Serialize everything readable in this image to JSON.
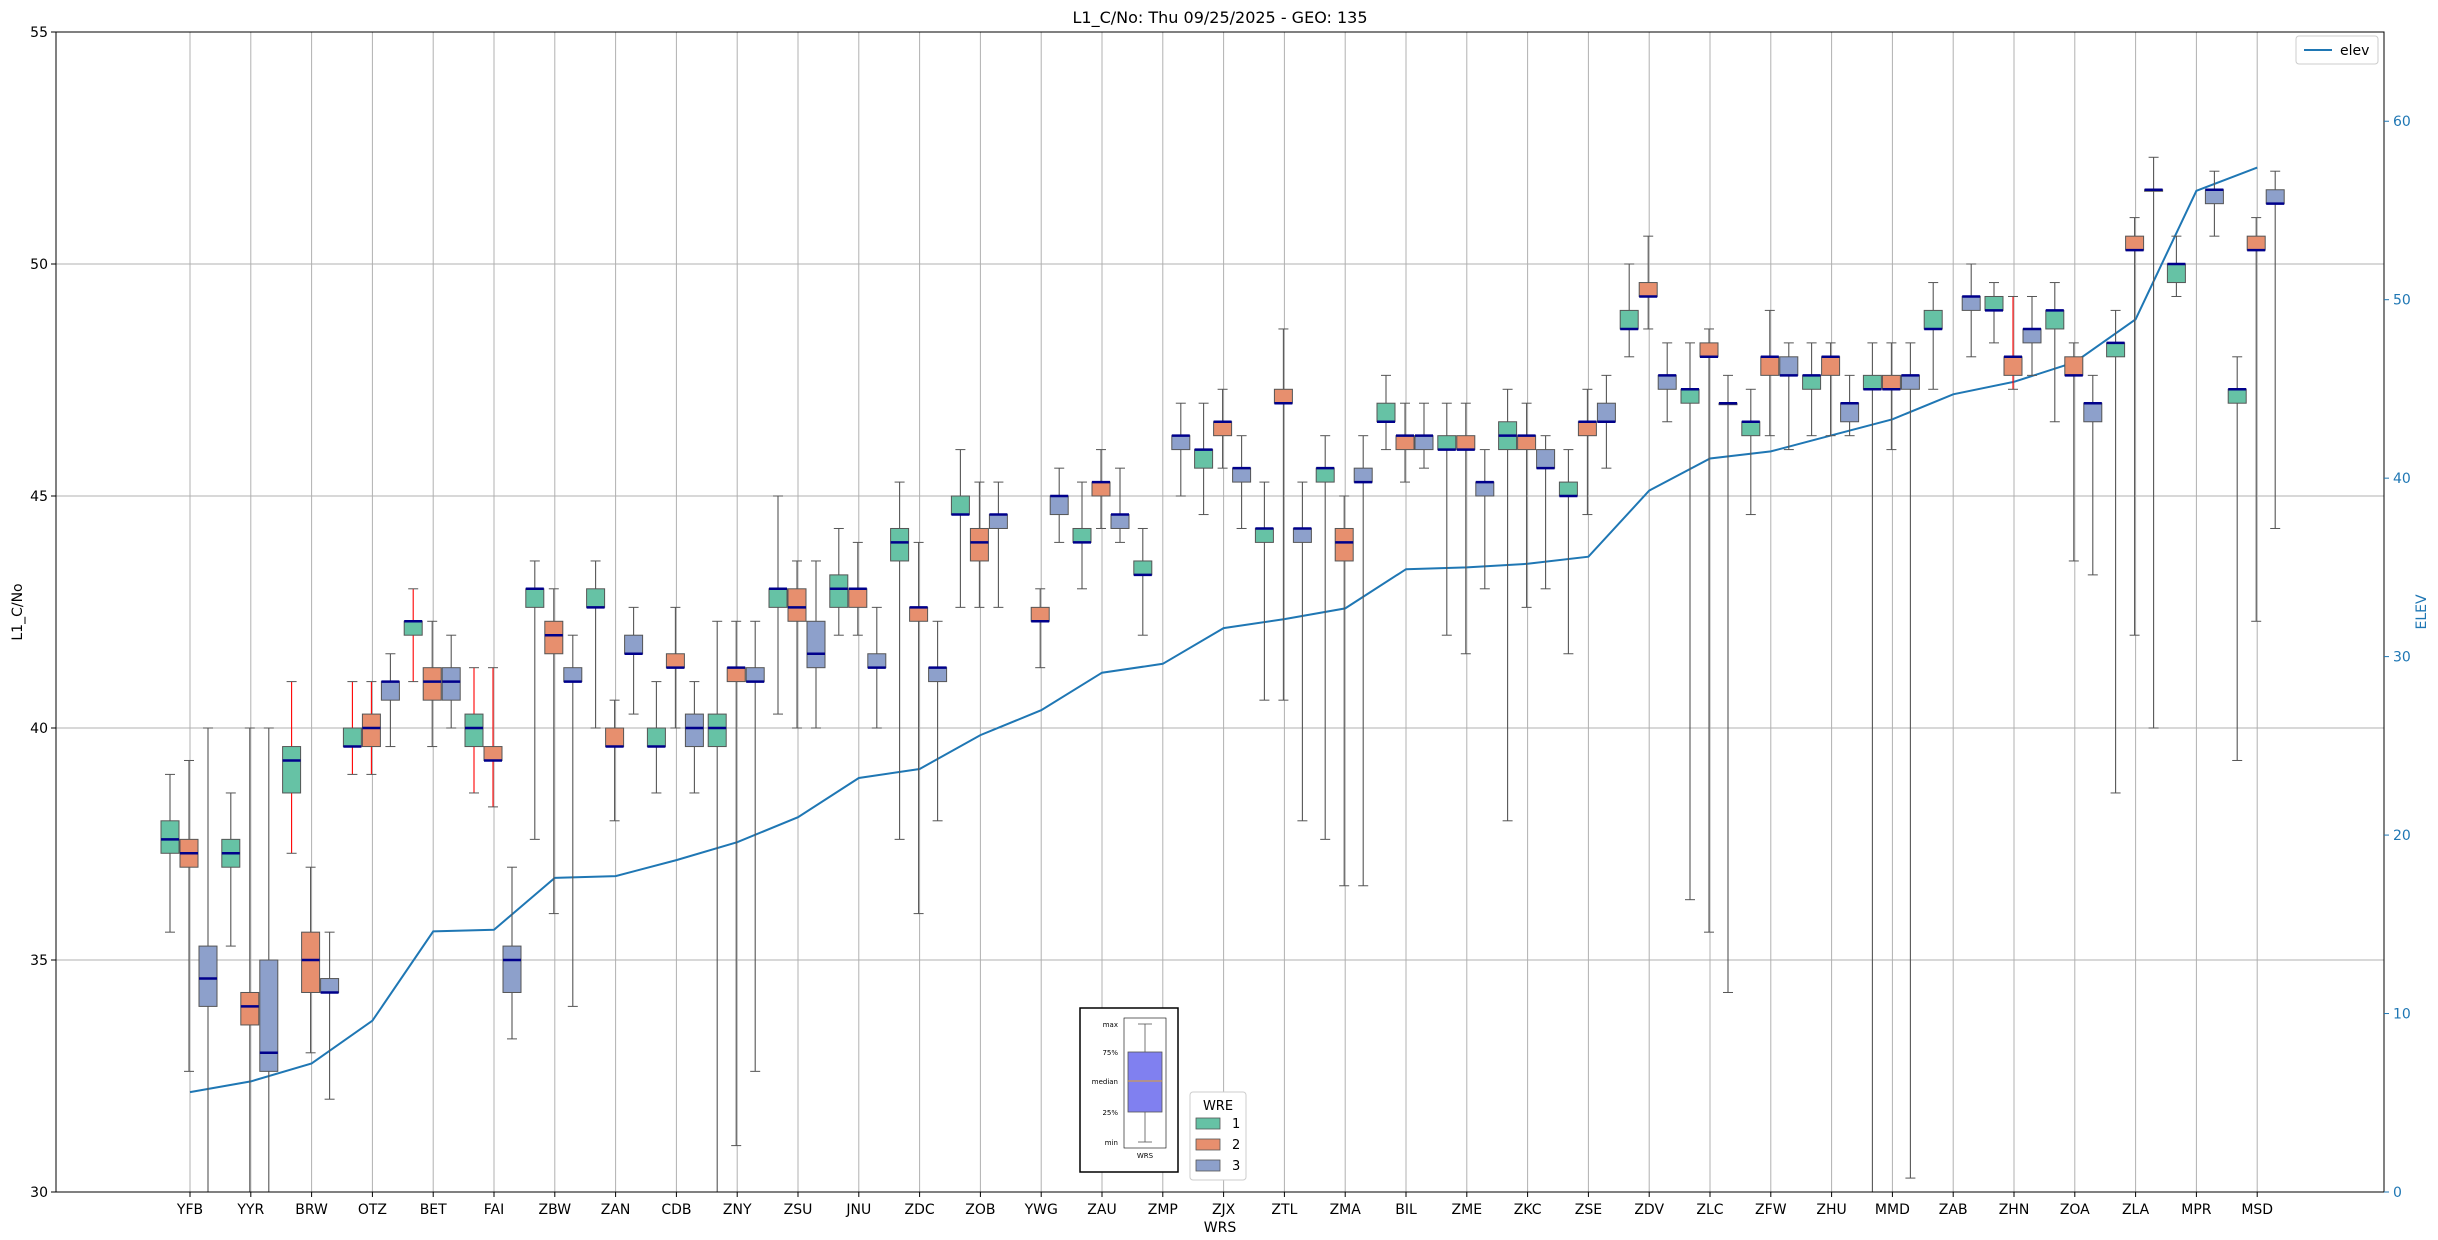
{
  "chart_data": {
    "type": "boxplot",
    "title": "L1_C/No: Thu 09/25/2025 - GEO: 135",
    "xlabel": "WRS",
    "ylabel": "L1_C/No",
    "y2label": "ELEV",
    "ylim": [
      30,
      55
    ],
    "y2lim": [
      0,
      65
    ],
    "yticks": [
      "30",
      "35",
      "40",
      "45",
      "50",
      "55"
    ],
    "y2ticks": [
      "0",
      "10",
      "20",
      "30",
      "40",
      "50",
      "60"
    ],
    "grid": true,
    "categories": [
      "YFB",
      "YYR",
      "BRW",
      "OTZ",
      "BET",
      "FAI",
      "ZBW",
      "ZAN",
      "CDB",
      "ZNY",
      "ZSU",
      "JNU",
      "ZDC",
      "ZOB",
      "YWG",
      "ZAU",
      "ZMP",
      "ZJX",
      "ZTL",
      "ZMA",
      "BIL",
      "ZME",
      "ZKC",
      "ZSE",
      "ZDV",
      "ZLC",
      "ZFW",
      "ZHU",
      "MMD",
      "ZAB",
      "ZHN",
      "ZOA",
      "ZLA",
      "MPR",
      "MSD"
    ],
    "series": [
      {
        "name": "1",
        "color": "#66c2a5",
        "boxes": [
          [
            0,
            35.6,
            37.3,
            37.6,
            38.0,
            39.0,
            "#555555"
          ],
          [
            1,
            35.3,
            37.0,
            37.3,
            37.6,
            38.6,
            "#555555"
          ],
          [
            2,
            37.3,
            38.6,
            39.3,
            39.6,
            41.0,
            "#ff0000"
          ],
          [
            3,
            39.0,
            39.6,
            39.6,
            40.0,
            41.0,
            "#ff0000"
          ],
          [
            4,
            41.0,
            42.0,
            42.3,
            42.3,
            43.0,
            "#ff0000"
          ],
          [
            5,
            38.6,
            39.6,
            40.0,
            40.3,
            41.3,
            "#ff0000"
          ],
          [
            6,
            37.6,
            42.6,
            43.0,
            43.0,
            43.6,
            "#555555"
          ],
          [
            7,
            40.0,
            42.6,
            42.6,
            43.0,
            43.6,
            "#555555"
          ],
          [
            8,
            38.6,
            39.6,
            39.6,
            40.0,
            41.0,
            "#555555"
          ],
          [
            9,
            30.0,
            39.6,
            40.0,
            40.3,
            42.3,
            "#555555"
          ],
          [
            10,
            40.3,
            42.6,
            43.0,
            43.0,
            45.0,
            "#555555"
          ],
          [
            11,
            42.0,
            42.6,
            43.0,
            43.3,
            44.3,
            "#555555"
          ],
          [
            12,
            37.6,
            43.6,
            44.0,
            44.3,
            45.3,
            "#555555"
          ],
          [
            13,
            42.6,
            44.6,
            44.6,
            45.0,
            46.0,
            "#555555"
          ],
          [
            15,
            43.0,
            44.0,
            44.0,
            44.3,
            45.3,
            "#555555"
          ],
          [
            16,
            42.0,
            43.3,
            43.3,
            43.6,
            44.3,
            "#555555"
          ],
          [
            17,
            44.6,
            45.6,
            46.0,
            46.0,
            47.0,
            "#555555"
          ],
          [
            18,
            40.6,
            44.0,
            44.3,
            44.3,
            45.3,
            "#555555"
          ],
          [
            19,
            37.6,
            45.3,
            45.6,
            45.6,
            46.3,
            "#555555"
          ],
          [
            20,
            46.0,
            46.6,
            46.6,
            47.0,
            47.6,
            "#555555"
          ],
          [
            21,
            42.0,
            46.0,
            46.0,
            46.3,
            47.0,
            "#555555"
          ],
          [
            22,
            38.0,
            46.0,
            46.3,
            46.6,
            47.3,
            "#555555"
          ],
          [
            23,
            41.6,
            45.0,
            45.0,
            45.3,
            46.0,
            "#555555"
          ],
          [
            24,
            48.0,
            48.6,
            48.6,
            49.0,
            50.0,
            "#555555"
          ],
          [
            25,
            36.3,
            47.0,
            47.3,
            47.3,
            48.3,
            "#555555"
          ],
          [
            26,
            44.6,
            46.3,
            46.6,
            46.6,
            47.3,
            "#555555"
          ],
          [
            27,
            46.3,
            47.3,
            47.6,
            47.6,
            48.3,
            "#555555"
          ],
          [
            28,
            30.0,
            47.3,
            47.3,
            47.6,
            48.3,
            "#555555"
          ],
          [
            29,
            47.3,
            48.6,
            48.6,
            49.0,
            49.6,
            "#555555"
          ],
          [
            30,
            48.3,
            49.0,
            49.0,
            49.3,
            49.6,
            "#555555"
          ],
          [
            31,
            46.6,
            48.6,
            49.0,
            49.0,
            49.6,
            "#555555"
          ],
          [
            32,
            38.6,
            48.0,
            48.3,
            48.3,
            49.0,
            "#555555"
          ],
          [
            33,
            49.3,
            49.6,
            50.0,
            50.0,
            50.6,
            "#555555"
          ],
          [
            34,
            39.3,
            47.0,
            47.3,
            47.3,
            48.0,
            "#555555"
          ]
        ]
      },
      {
        "name": "2",
        "color": "#e78f6e",
        "boxes": [
          [
            0,
            32.6,
            37.0,
            37.3,
            37.6,
            39.3,
            "#555555"
          ],
          [
            1,
            30.0,
            33.6,
            34.0,
            34.3,
            40.0,
            "#555555"
          ],
          [
            2,
            33.0,
            34.3,
            35.0,
            35.6,
            37.0,
            "#555555"
          ],
          [
            3,
            39.0,
            39.6,
            40.0,
            40.3,
            41.0,
            "#ff0000"
          ],
          [
            4,
            39.6,
            40.6,
            41.0,
            41.3,
            42.3,
            "#555555"
          ],
          [
            5,
            38.3,
            39.3,
            39.3,
            39.6,
            41.3,
            "#ff0000"
          ],
          [
            6,
            36.0,
            41.6,
            42.0,
            42.3,
            43.0,
            "#555555"
          ],
          [
            7,
            38.0,
            39.6,
            39.6,
            40.0,
            40.6,
            "#555555"
          ],
          [
            8,
            40.0,
            41.3,
            41.3,
            41.6,
            42.6,
            "#555555"
          ],
          [
            9,
            31.0,
            41.0,
            41.3,
            41.3,
            42.3,
            "#555555"
          ],
          [
            10,
            40.0,
            42.3,
            42.6,
            43.0,
            43.6,
            "#555555"
          ],
          [
            11,
            42.0,
            42.6,
            43.0,
            43.0,
            44.0,
            "#555555"
          ],
          [
            12,
            36.0,
            42.3,
            42.6,
            42.6,
            44.0,
            "#555555"
          ],
          [
            13,
            42.6,
            43.6,
            44.0,
            44.3,
            45.3,
            "#555555"
          ],
          [
            14,
            41.3,
            42.3,
            42.3,
            42.6,
            43.0,
            "#555555"
          ],
          [
            15,
            44.3,
            45.0,
            45.3,
            45.3,
            46.0,
            "#555555"
          ],
          [
            17,
            45.6,
            46.3,
            46.6,
            46.6,
            47.3,
            "#555555"
          ],
          [
            18,
            40.6,
            47.0,
            47.0,
            47.3,
            48.6,
            "#555555"
          ],
          [
            19,
            36.6,
            43.6,
            44.0,
            44.3,
            45.0,
            "#555555"
          ],
          [
            20,
            45.3,
            46.0,
            46.3,
            46.3,
            47.0,
            "#555555"
          ],
          [
            21,
            41.6,
            46.0,
            46.0,
            46.3,
            47.0,
            "#555555"
          ],
          [
            22,
            42.6,
            46.0,
            46.3,
            46.3,
            47.0,
            "#555555"
          ],
          [
            23,
            44.6,
            46.3,
            46.6,
            46.6,
            47.3,
            "#555555"
          ],
          [
            24,
            48.6,
            49.3,
            49.3,
            49.6,
            50.6,
            "#555555"
          ],
          [
            25,
            35.6,
            48.0,
            48.0,
            48.3,
            48.6,
            "#555555"
          ],
          [
            26,
            46.3,
            47.6,
            48.0,
            48.0,
            49.0,
            "#555555"
          ],
          [
            27,
            46.3,
            47.6,
            48.0,
            48.0,
            48.3,
            "#555555"
          ],
          [
            28,
            46.0,
            47.3,
            47.3,
            47.6,
            48.3,
            "#555555"
          ],
          [
            30,
            47.3,
            47.6,
            48.0,
            48.0,
            49.3,
            "#ff0000"
          ],
          [
            31,
            43.6,
            47.6,
            47.6,
            48.0,
            48.3,
            "#555555"
          ],
          [
            32,
            42.0,
            50.3,
            50.3,
            50.6,
            51.0,
            "#555555"
          ],
          [
            34,
            42.3,
            50.3,
            50.3,
            50.6,
            51.0,
            "#555555"
          ]
        ]
      },
      {
        "name": "3",
        "color": "#8da0cb",
        "boxes": [
          [
            0,
            30.0,
            34.0,
            34.6,
            35.3,
            40.0,
            "#555555"
          ],
          [
            1,
            30.0,
            32.6,
            33.0,
            35.0,
            40.0,
            "#555555"
          ],
          [
            2,
            32.0,
            34.3,
            34.3,
            34.6,
            35.6,
            "#555555"
          ],
          [
            3,
            39.6,
            40.6,
            41.0,
            41.0,
            41.6,
            "#555555"
          ],
          [
            4,
            40.0,
            40.6,
            41.0,
            41.3,
            42.0,
            "#555555"
          ],
          [
            5,
            33.3,
            34.3,
            35.0,
            35.3,
            37.0,
            "#555555"
          ],
          [
            6,
            34.0,
            41.0,
            41.0,
            41.3,
            42.0,
            "#555555"
          ],
          [
            7,
            40.3,
            41.6,
            41.6,
            42.0,
            42.6,
            "#555555"
          ],
          [
            8,
            38.6,
            39.6,
            40.0,
            40.3,
            41.0,
            "#555555"
          ],
          [
            9,
            32.6,
            41.0,
            41.0,
            41.3,
            42.3,
            "#555555"
          ],
          [
            10,
            40.0,
            41.3,
            41.6,
            42.3,
            43.6,
            "#555555"
          ],
          [
            11,
            40.0,
            41.3,
            41.3,
            41.6,
            42.6,
            "#555555"
          ],
          [
            12,
            38.0,
            41.0,
            41.3,
            41.3,
            42.3,
            "#555555"
          ],
          [
            13,
            42.6,
            44.3,
            44.6,
            44.6,
            45.3,
            "#555555"
          ],
          [
            14,
            44.0,
            44.6,
            45.0,
            45.0,
            45.6,
            "#555555"
          ],
          [
            15,
            44.0,
            44.3,
            44.6,
            44.6,
            45.6,
            "#555555"
          ],
          [
            16,
            45.0,
            46.0,
            46.3,
            46.3,
            47.0,
            "#555555"
          ],
          [
            17,
            44.3,
            45.3,
            45.6,
            45.6,
            46.3,
            "#555555"
          ],
          [
            18,
            38.0,
            44.0,
            44.3,
            44.3,
            45.3,
            "#555555"
          ],
          [
            19,
            36.6,
            45.3,
            45.3,
            45.6,
            46.3,
            "#555555"
          ],
          [
            20,
            45.6,
            46.0,
            46.3,
            46.3,
            47.0,
            "#555555"
          ],
          [
            21,
            43.0,
            45.0,
            45.3,
            45.3,
            46.0,
            "#555555"
          ],
          [
            22,
            43.0,
            45.6,
            45.6,
            46.0,
            46.3,
            "#555555"
          ],
          [
            23,
            45.6,
            46.6,
            46.6,
            47.0,
            47.6,
            "#555555"
          ],
          [
            24,
            46.6,
            47.3,
            47.6,
            47.6,
            48.3,
            "#555555"
          ],
          [
            25,
            34.3,
            47.0,
            47.0,
            47.0,
            47.6,
            "#555555"
          ],
          [
            26,
            46.0,
            47.6,
            47.6,
            48.0,
            48.3,
            "#555555"
          ],
          [
            27,
            46.3,
            46.6,
            47.0,
            47.0,
            47.6,
            "#555555"
          ],
          [
            28,
            30.3,
            47.3,
            47.6,
            47.6,
            48.3,
            "#555555"
          ],
          [
            29,
            48.0,
            49.0,
            49.3,
            49.3,
            50.0,
            "#555555"
          ],
          [
            30,
            47.6,
            48.3,
            48.6,
            48.6,
            49.3,
            "#555555"
          ],
          [
            31,
            43.3,
            46.6,
            47.0,
            47.0,
            47.6,
            "#555555"
          ],
          [
            32,
            40.0,
            51.6,
            51.6,
            51.6,
            52.3,
            "#555555"
          ],
          [
            33,
            50.6,
            51.3,
            51.6,
            51.6,
            52.0,
            "#555555"
          ],
          [
            34,
            44.3,
            51.3,
            51.3,
            51.6,
            52.0,
            "#555555"
          ]
        ]
      }
    ],
    "elev": {
      "name": "elev",
      "color": "#1f77b4",
      "values": [
        5.6,
        6.2,
        7.2,
        9.6,
        14.6,
        14.7,
        17.6,
        17.7,
        18.6,
        19.6,
        21.0,
        23.2,
        23.7,
        25.6,
        27.0,
        29.1,
        29.6,
        31.6,
        32.1,
        32.7,
        34.9,
        35.0,
        35.2,
        35.6,
        39.3,
        41.1,
        41.5,
        42.4,
        43.3,
        44.7,
        45.4,
        46.5,
        48.9,
        56.1,
        57.4
      ]
    },
    "legend_elev": {
      "label": "elev",
      "placement": "top-right"
    },
    "legend_wre": {
      "title": "WRE",
      "entries": [
        "1",
        "2",
        "3"
      ],
      "placement": "bottom-center"
    },
    "key_inset": {
      "labels": [
        "max",
        "75%",
        "median",
        "25%",
        "min"
      ],
      "xlabel": "WRS",
      "box_color": "#8080f0"
    }
  }
}
